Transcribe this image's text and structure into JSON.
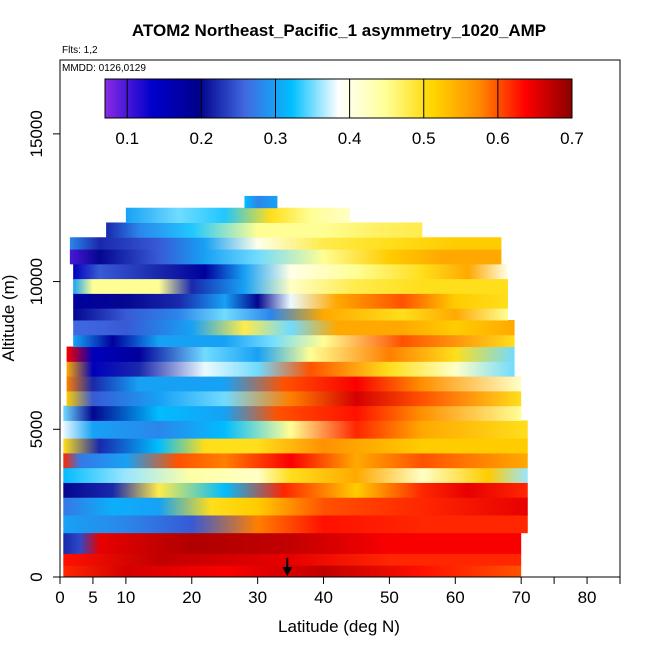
{
  "chart_data": {
    "type": "heatmap",
    "title": "ATOM2 Northeast_Pacific_1 asymmetry_1020_AMP",
    "flights_note": "Flts: 1,2",
    "dates_note": "MMDD: 0126,0129",
    "xlabel": "Latitude (deg N)",
    "ylabel": "Altitude (m)",
    "xlim": [
      0,
      85
    ],
    "ylim": [
      0,
      17500
    ],
    "x_ticks": [
      0,
      5,
      10,
      20,
      30,
      40,
      50,
      60,
      70,
      80
    ],
    "x_tick_labels": [
      "0",
      "5",
      "10",
      "20",
      "30",
      "40",
      "50",
      "60",
      "70",
      "80"
    ],
    "x_minor_ticks": [
      75,
      85
    ],
    "y_ticks": [
      0,
      5000,
      10000,
      15000
    ],
    "y_tick_labels": [
      "0",
      "5000",
      "10000",
      "15000"
    ],
    "colorbar": {
      "min": 0.07,
      "max": 0.7,
      "ticks": [
        0.1,
        0.2,
        0.3,
        0.4,
        0.5,
        0.6,
        0.7
      ],
      "tick_labels": [
        "0.1",
        "0.2",
        "0.3",
        "0.4",
        "0.5",
        "0.6",
        "0.7"
      ],
      "colors": [
        "#8a2be2",
        "#0000cd",
        "#00008b",
        "#4169e1",
        "#00bfff",
        "#ffffff",
        "#ffff99",
        "#ffd700",
        "#ff8c00",
        "#ff0000",
        "#8b0000"
      ]
    },
    "marker": {
      "type": "arrow",
      "latitude": 34.5,
      "altitude": 650
    },
    "bands": [
      {
        "alt": [
          0,
          400
        ],
        "lat": [
          0.5,
          70
        ],
        "stops": [
          [
            0.5,
            0.62
          ],
          [
            10,
            0.66
          ],
          [
            25,
            0.64
          ],
          [
            40,
            0.67
          ],
          [
            55,
            0.63
          ],
          [
            70,
            0.6
          ]
        ]
      },
      {
        "alt": [
          400,
          800
        ],
        "lat": [
          0.5,
          70
        ],
        "stops": [
          [
            0.5,
            0.63
          ],
          [
            15,
            0.67
          ],
          [
            35,
            0.65
          ],
          [
            50,
            0.62
          ],
          [
            70,
            0.62
          ]
        ]
      },
      {
        "alt": [
          800,
          1500
        ],
        "lat": [
          0.5,
          70
        ],
        "stops": [
          [
            0.5,
            0.22
          ],
          [
            3,
            0.24
          ],
          [
            6,
            0.65
          ],
          [
            20,
            0.68
          ],
          [
            35,
            0.67
          ],
          [
            50,
            0.64
          ],
          [
            70,
            0.64
          ]
        ]
      },
      {
        "alt": [
          1500,
          2100
        ],
        "lat": [
          0.5,
          71
        ],
        "stops": [
          [
            0.5,
            0.3
          ],
          [
            10,
            0.28
          ],
          [
            20,
            0.25
          ],
          [
            30,
            0.58
          ],
          [
            40,
            0.63
          ],
          [
            55,
            0.62
          ],
          [
            71,
            0.62
          ]
        ]
      },
      {
        "alt": [
          2100,
          2700
        ],
        "lat": [
          0.5,
          71
        ],
        "stops": [
          [
            0.5,
            0.27
          ],
          [
            8,
            0.31
          ],
          [
            15,
            0.3
          ],
          [
            23,
            0.5
          ],
          [
            30,
            0.52
          ],
          [
            40,
            0.6
          ],
          [
            55,
            0.62
          ],
          [
            71,
            0.65
          ]
        ]
      },
      {
        "alt": [
          2700,
          3200
        ],
        "lat": [
          0.5,
          71
        ],
        "stops": [
          [
            0.5,
            0.2
          ],
          [
            8,
            0.22
          ],
          [
            15,
            0.48
          ],
          [
            25,
            0.32
          ],
          [
            34,
            0.62
          ],
          [
            45,
            0.52
          ],
          [
            55,
            0.62
          ],
          [
            62,
            0.65
          ],
          [
            71,
            0.62
          ]
        ]
      },
      {
        "alt": [
          3200,
          3700
        ],
        "lat": [
          0.5,
          71
        ],
        "stops": [
          [
            0.5,
            0.32
          ],
          [
            10,
            0.36
          ],
          [
            20,
            0.44
          ],
          [
            30,
            0.42
          ],
          [
            35,
            0.5
          ],
          [
            45,
            0.55
          ],
          [
            55,
            0.42
          ],
          [
            65,
            0.52
          ],
          [
            71,
            0.36
          ]
        ]
      },
      {
        "alt": [
          3700,
          4200
        ],
        "lat": [
          0.5,
          71
        ],
        "stops": [
          [
            0.5,
            0.62
          ],
          [
            3,
            0.27
          ],
          [
            10,
            0.3
          ],
          [
            18,
            0.6
          ],
          [
            25,
            0.58
          ],
          [
            35,
            0.64
          ],
          [
            45,
            0.55
          ],
          [
            55,
            0.6
          ],
          [
            71,
            0.55
          ]
        ]
      },
      {
        "alt": [
          4200,
          4700
        ],
        "lat": [
          0.5,
          71
        ],
        "stops": [
          [
            0.5,
            0.5
          ],
          [
            6,
            0.22
          ],
          [
            15,
            0.32
          ],
          [
            22,
            0.5
          ],
          [
            30,
            0.5
          ],
          [
            40,
            0.57
          ],
          [
            55,
            0.52
          ],
          [
            71,
            0.52
          ]
        ]
      },
      {
        "alt": [
          4700,
          5300
        ],
        "lat": [
          0.5,
          71
        ],
        "stops": [
          [
            0.5,
            0.38
          ],
          [
            5,
            0.3
          ],
          [
            15,
            0.28
          ],
          [
            25,
            0.32
          ],
          [
            35,
            0.45
          ],
          [
            45,
            0.62
          ],
          [
            55,
            0.55
          ],
          [
            71,
            0.5
          ]
        ]
      },
      {
        "alt": [
          5300,
          5800
        ],
        "lat": [
          0.5,
          70
        ],
        "stops": [
          [
            0.5,
            0.35
          ],
          [
            5,
            0.2
          ],
          [
            15,
            0.32
          ],
          [
            25,
            0.3
          ],
          [
            33,
            0.6
          ],
          [
            45,
            0.63
          ],
          [
            55,
            0.57
          ],
          [
            70,
            0.45
          ]
        ]
      },
      {
        "alt": [
          5800,
          6300
        ],
        "lat": [
          1,
          70
        ],
        "stops": [
          [
            1,
            0.52
          ],
          [
            5,
            0.25
          ],
          [
            15,
            0.3
          ],
          [
            25,
            0.35
          ],
          [
            35,
            0.58
          ],
          [
            45,
            0.66
          ],
          [
            55,
            0.6
          ],
          [
            70,
            0.5
          ]
        ]
      },
      {
        "alt": [
          6300,
          6800
        ],
        "lat": [
          1,
          70
        ],
        "stops": [
          [
            1,
            0.58
          ],
          [
            5,
            0.22
          ],
          [
            12,
            0.3
          ],
          [
            25,
            0.3
          ],
          [
            34,
            0.6
          ],
          [
            45,
            0.64
          ],
          [
            55,
            0.57
          ],
          [
            70,
            0.42
          ]
        ]
      },
      {
        "alt": [
          6800,
          7300
        ],
        "lat": [
          1,
          69
        ],
        "stops": [
          [
            1,
            0.55
          ],
          [
            5,
            0.15
          ],
          [
            12,
            0.22
          ],
          [
            22,
            0.38
          ],
          [
            30,
            0.35
          ],
          [
            38,
            0.6
          ],
          [
            50,
            0.5
          ],
          [
            60,
            0.42
          ],
          [
            69,
            0.35
          ]
        ]
      },
      {
        "alt": [
          7300,
          7800
        ],
        "lat": [
          1,
          69
        ],
        "stops": [
          [
            1,
            0.64
          ],
          [
            5,
            0.15
          ],
          [
            12,
            0.18
          ],
          [
            22,
            0.35
          ],
          [
            30,
            0.3
          ],
          [
            38,
            0.45
          ],
          [
            50,
            0.58
          ],
          [
            60,
            0.5
          ],
          [
            69,
            0.35
          ]
        ]
      },
      {
        "alt": [
          7800,
          8200
        ],
        "lat": [
          2,
          69
        ],
        "stops": [
          [
            2,
            0.3
          ],
          [
            8,
            0.18
          ],
          [
            15,
            0.3
          ],
          [
            25,
            0.3
          ],
          [
            32,
            0.35
          ],
          [
            40,
            0.45
          ],
          [
            52,
            0.6
          ],
          [
            69,
            0.5
          ]
        ]
      },
      {
        "alt": [
          8200,
          8700
        ],
        "lat": [
          2,
          69
        ],
        "stops": [
          [
            2,
            0.26
          ],
          [
            10,
            0.25
          ],
          [
            20,
            0.3
          ],
          [
            28,
            0.48
          ],
          [
            35,
            0.35
          ],
          [
            42,
            0.55
          ],
          [
            52,
            0.55
          ],
          [
            60,
            0.52
          ],
          [
            69,
            0.55
          ]
        ]
      },
      {
        "alt": [
          8700,
          9100
        ],
        "lat": [
          2,
          68
        ],
        "stops": [
          [
            2,
            0.2
          ],
          [
            10,
            0.25
          ],
          [
            18,
            0.28
          ],
          [
            25,
            0.35
          ],
          [
            32,
            0.28
          ],
          [
            40,
            0.55
          ],
          [
            52,
            0.5
          ],
          [
            60,
            0.55
          ],
          [
            68,
            0.45
          ]
        ]
      },
      {
        "alt": [
          9100,
          9600
        ],
        "lat": [
          2,
          68
        ],
        "stops": [
          [
            2,
            0.18
          ],
          [
            10,
            0.2
          ],
          [
            18,
            0.22
          ],
          [
            25,
            0.3
          ],
          [
            30,
            0.2
          ],
          [
            35,
            0.38
          ],
          [
            42,
            0.55
          ],
          [
            52,
            0.6
          ],
          [
            60,
            0.52
          ],
          [
            68,
            0.5
          ]
        ]
      },
      {
        "alt": [
          9600,
          10100
        ],
        "lat": [
          2,
          68
        ],
        "stops": [
          [
            2,
            0.3
          ],
          [
            5,
            0.45
          ],
          [
            15,
            0.45
          ],
          [
            20,
            0.22
          ],
          [
            28,
            0.3
          ],
          [
            35,
            0.42
          ],
          [
            45,
            0.48
          ],
          [
            55,
            0.5
          ],
          [
            68,
            0.5
          ]
        ]
      },
      {
        "alt": [
          10100,
          10600
        ],
        "lat": [
          2,
          68
        ],
        "stops": [
          [
            2,
            0.15
          ],
          [
            6,
            0.25
          ],
          [
            15,
            0.22
          ],
          [
            22,
            0.18
          ],
          [
            28,
            0.3
          ],
          [
            35,
            0.4
          ],
          [
            45,
            0.45
          ],
          [
            55,
            0.5
          ],
          [
            62,
            0.55
          ],
          [
            68,
            0.4
          ]
        ]
      },
      {
        "alt": [
          10600,
          11100
        ],
        "lat": [
          1.5,
          67
        ],
        "stops": [
          [
            1.5,
            0.1
          ],
          [
            6,
            0.2
          ],
          [
            15,
            0.25
          ],
          [
            22,
            0.3
          ],
          [
            30,
            0.35
          ],
          [
            40,
            0.45
          ],
          [
            50,
            0.52
          ],
          [
            58,
            0.55
          ],
          [
            67,
            0.55
          ]
        ]
      },
      {
        "alt": [
          11100,
          11500
        ],
        "lat": [
          1.5,
          67
        ],
        "stops": [
          [
            1.5,
            0.28
          ],
          [
            6,
            0.22
          ],
          [
            15,
            0.25
          ],
          [
            22,
            0.3
          ],
          [
            30,
            0.4
          ],
          [
            40,
            0.48
          ],
          [
            50,
            0.5
          ],
          [
            60,
            0.52
          ],
          [
            67,
            0.52
          ]
        ]
      },
      {
        "alt": [
          11500,
          12000
        ],
        "lat": [
          7,
          55
        ],
        "stops": [
          [
            7,
            0.22
          ],
          [
            12,
            0.28
          ],
          [
            20,
            0.33
          ],
          [
            30,
            0.45
          ],
          [
            40,
            0.45
          ],
          [
            48,
            0.47
          ],
          [
            55,
            0.48
          ]
        ]
      },
      {
        "alt": [
          12000,
          12500
        ],
        "lat": [
          10,
          44
        ],
        "stops": [
          [
            10,
            0.3
          ],
          [
            18,
            0.35
          ],
          [
            25,
            0.33
          ],
          [
            32,
            0.5
          ],
          [
            38,
            0.45
          ],
          [
            44,
            0.42
          ]
        ]
      },
      {
        "alt": [
          12500,
          12900
        ],
        "lat": [
          28,
          33
        ],
        "stops": [
          [
            28,
            0.32
          ],
          [
            30,
            0.28
          ],
          [
            33,
            0.3
          ]
        ]
      }
    ]
  }
}
